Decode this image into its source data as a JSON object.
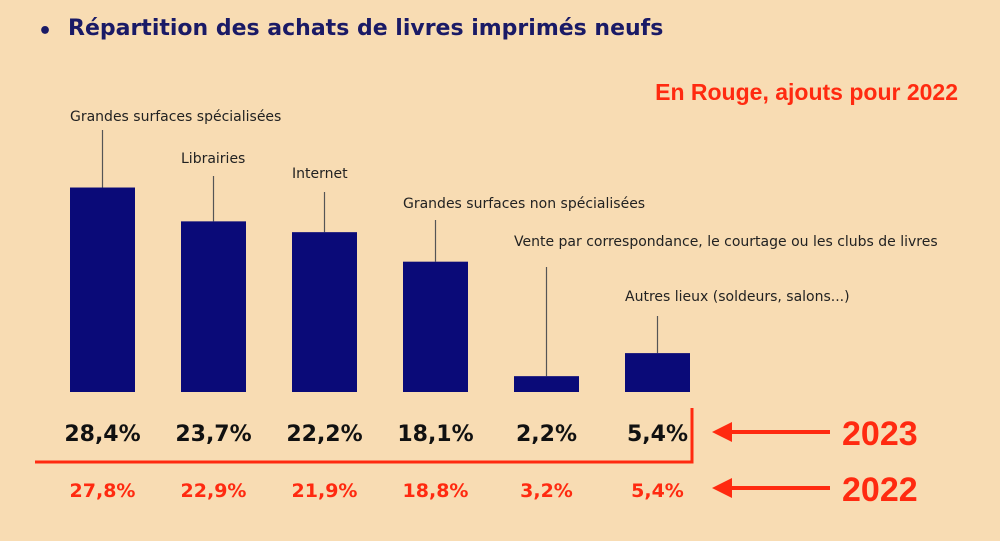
{
  "heading": {
    "bullet": "•",
    "title": "Répartition des achats de livres imprimés neufs"
  },
  "annotation": {
    "note": "En Rouge, ajouts pour 2022",
    "year_primary": "2023",
    "year_secondary": "2022"
  },
  "colors": {
    "bar": "#0a0a78",
    "accent_red": "#ff2a10",
    "title": "#1a1a66",
    "background": "#f8dcb3"
  },
  "chart_data": {
    "type": "bar",
    "categories": [
      "Grandes surfaces spécialisées",
      "Librairies",
      "Internet",
      "Grandes surfaces non spécialisées",
      "Vente par correspondance, le courtage ou les clubs de livres",
      "Autres lieux (soldeurs, salons...)"
    ],
    "series": [
      {
        "name": "2023",
        "values": [
          28.4,
          23.7,
          22.2,
          18.1,
          2.2,
          5.4
        ],
        "labels": [
          "28,4%",
          "23,7%",
          "22,2%",
          "18,1%",
          "2,2%",
          "5,4%"
        ]
      },
      {
        "name": "2022",
        "values": [
          27.8,
          22.9,
          21.9,
          18.8,
          3.2,
          5.4
        ],
        "labels": [
          "27,8%",
          "22,9%",
          "21,9%",
          "18,8%",
          "3,2%",
          "5,4%"
        ]
      }
    ],
    "unit": "%",
    "axes": "none",
    "grid": false
  }
}
